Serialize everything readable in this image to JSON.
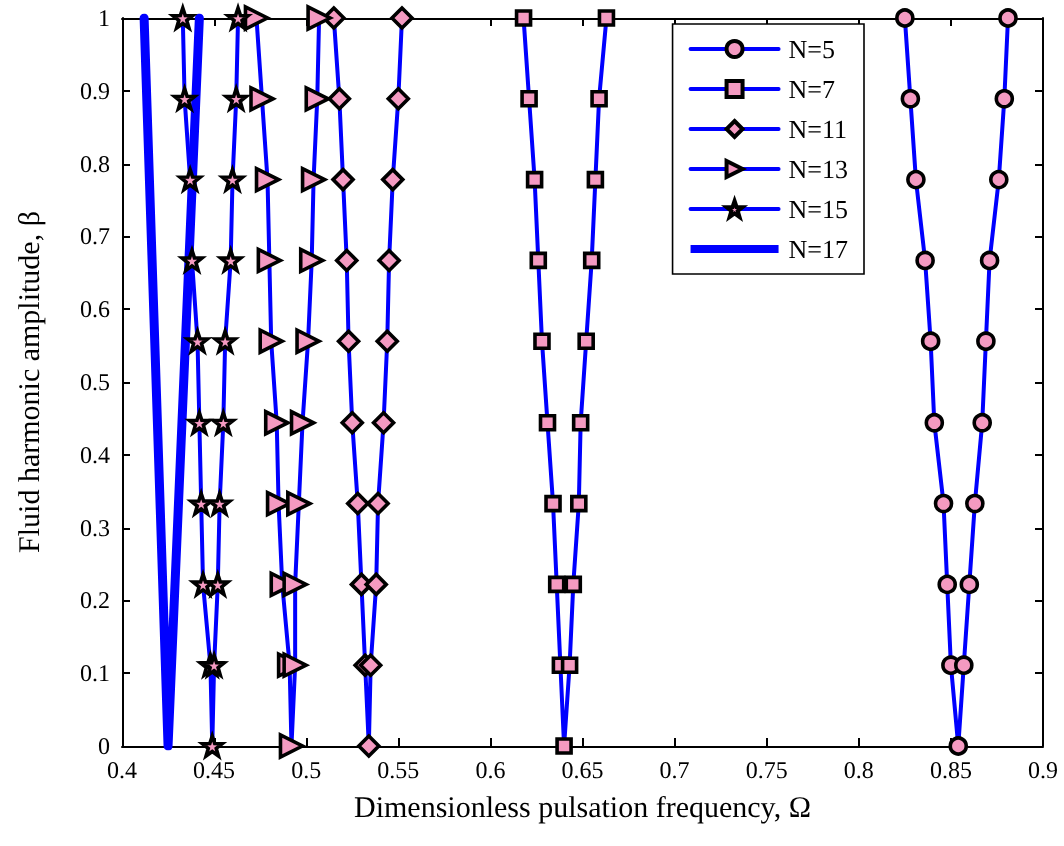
{
  "chart_data": {
    "type": "line",
    "xlabel": "Dimensionless pulsation frequency, Ω",
    "ylabel": "Fluid harmonic amplitude, β",
    "xlim": [
      0.4,
      0.9
    ],
    "ylim": [
      0,
      1
    ],
    "xticks": [
      0.4,
      0.45,
      0.5,
      0.55,
      0.6,
      0.65,
      0.7,
      0.75,
      0.8,
      0.85,
      0.9
    ],
    "yticks": [
      0,
      0.1,
      0.2,
      0.3,
      0.4,
      0.5,
      0.6,
      0.7,
      0.8,
      0.9,
      1
    ],
    "grid": false,
    "legend": "top right",
    "series": [
      {
        "name": "N=5",
        "color": "#0000ff",
        "marker": "circle",
        "x": [
          0.825,
          0.828,
          0.831,
          0.836,
          0.839,
          0.841,
          0.846,
          0.848,
          0.85,
          0.854,
          0.857,
          0.86,
          0.863,
          0.867,
          0.869,
          0.871,
          0.876,
          0.879,
          0.881
        ],
        "values": [
          1,
          0.889,
          0.778,
          0.667,
          0.556,
          0.444,
          0.333,
          0.222,
          0.111,
          0,
          0.111,
          0.222,
          0.333,
          0.444,
          0.556,
          0.667,
          0.778,
          0.889,
          1
        ]
      },
      {
        "name": "N=7",
        "color": "#0000ff",
        "marker": "square",
        "x": [
          0.618,
          0.621,
          0.624,
          0.626,
          0.628,
          0.631,
          0.634,
          0.636,
          0.638,
          0.64,
          0.643,
          0.645,
          0.648,
          0.649,
          0.652,
          0.655,
          0.657,
          0.659,
          0.663
        ],
        "values": [
          1,
          0.889,
          0.778,
          0.667,
          0.556,
          0.444,
          0.333,
          0.222,
          0.111,
          0,
          0.111,
          0.222,
          0.333,
          0.444,
          0.556,
          0.667,
          0.778,
          0.889,
          1
        ]
      },
      {
        "name": "N=11",
        "color": "#0000ff",
        "marker": "diamond",
        "x": [
          0.515,
          0.518,
          0.52,
          0.522,
          0.523,
          0.525,
          0.528,
          0.53,
          0.532,
          0.534,
          0.535,
          0.538,
          0.539,
          0.542,
          0.544,
          0.545,
          0.547,
          0.55,
          0.552
        ],
        "values": [
          1,
          0.889,
          0.778,
          0.667,
          0.556,
          0.444,
          0.333,
          0.222,
          0.111,
          0,
          0.111,
          0.222,
          0.333,
          0.444,
          0.556,
          0.667,
          0.778,
          0.889,
          1
        ]
      },
      {
        "name": "N=13",
        "color": "#0000ff",
        "marker": "triangle",
        "x": [
          0.473,
          0.476,
          0.479,
          0.48,
          0.481,
          0.484,
          0.485,
          0.487,
          0.491,
          0.492,
          0.494,
          0.494,
          0.496,
          0.498,
          0.501,
          0.503,
          0.504,
          0.506,
          0.507
        ],
        "values": [
          1,
          0.889,
          0.778,
          0.667,
          0.556,
          0.444,
          0.333,
          0.222,
          0.111,
          0,
          0.111,
          0.222,
          0.333,
          0.444,
          0.556,
          0.667,
          0.778,
          0.889,
          1
        ]
      },
      {
        "name": "N=15",
        "color": "#0000ff",
        "marker": "star",
        "x": [
          0.433,
          0.434,
          0.437,
          0.438,
          0.441,
          0.442,
          0.443,
          0.444,
          0.448,
          0.449,
          0.45,
          0.452,
          0.453,
          0.455,
          0.456,
          0.459,
          0.46,
          0.462,
          0.463
        ],
        "values": [
          1,
          0.889,
          0.778,
          0.667,
          0.556,
          0.444,
          0.333,
          0.222,
          0.111,
          0,
          0.111,
          0.222,
          0.333,
          0.444,
          0.556,
          0.667,
          0.778,
          0.889,
          1
        ]
      },
      {
        "name": "N=17",
        "color": "#0000ff",
        "marker": "none",
        "x": [
          0.412,
          0.425,
          0.442
        ],
        "values": [
          1,
          0,
          1
        ]
      }
    ]
  }
}
